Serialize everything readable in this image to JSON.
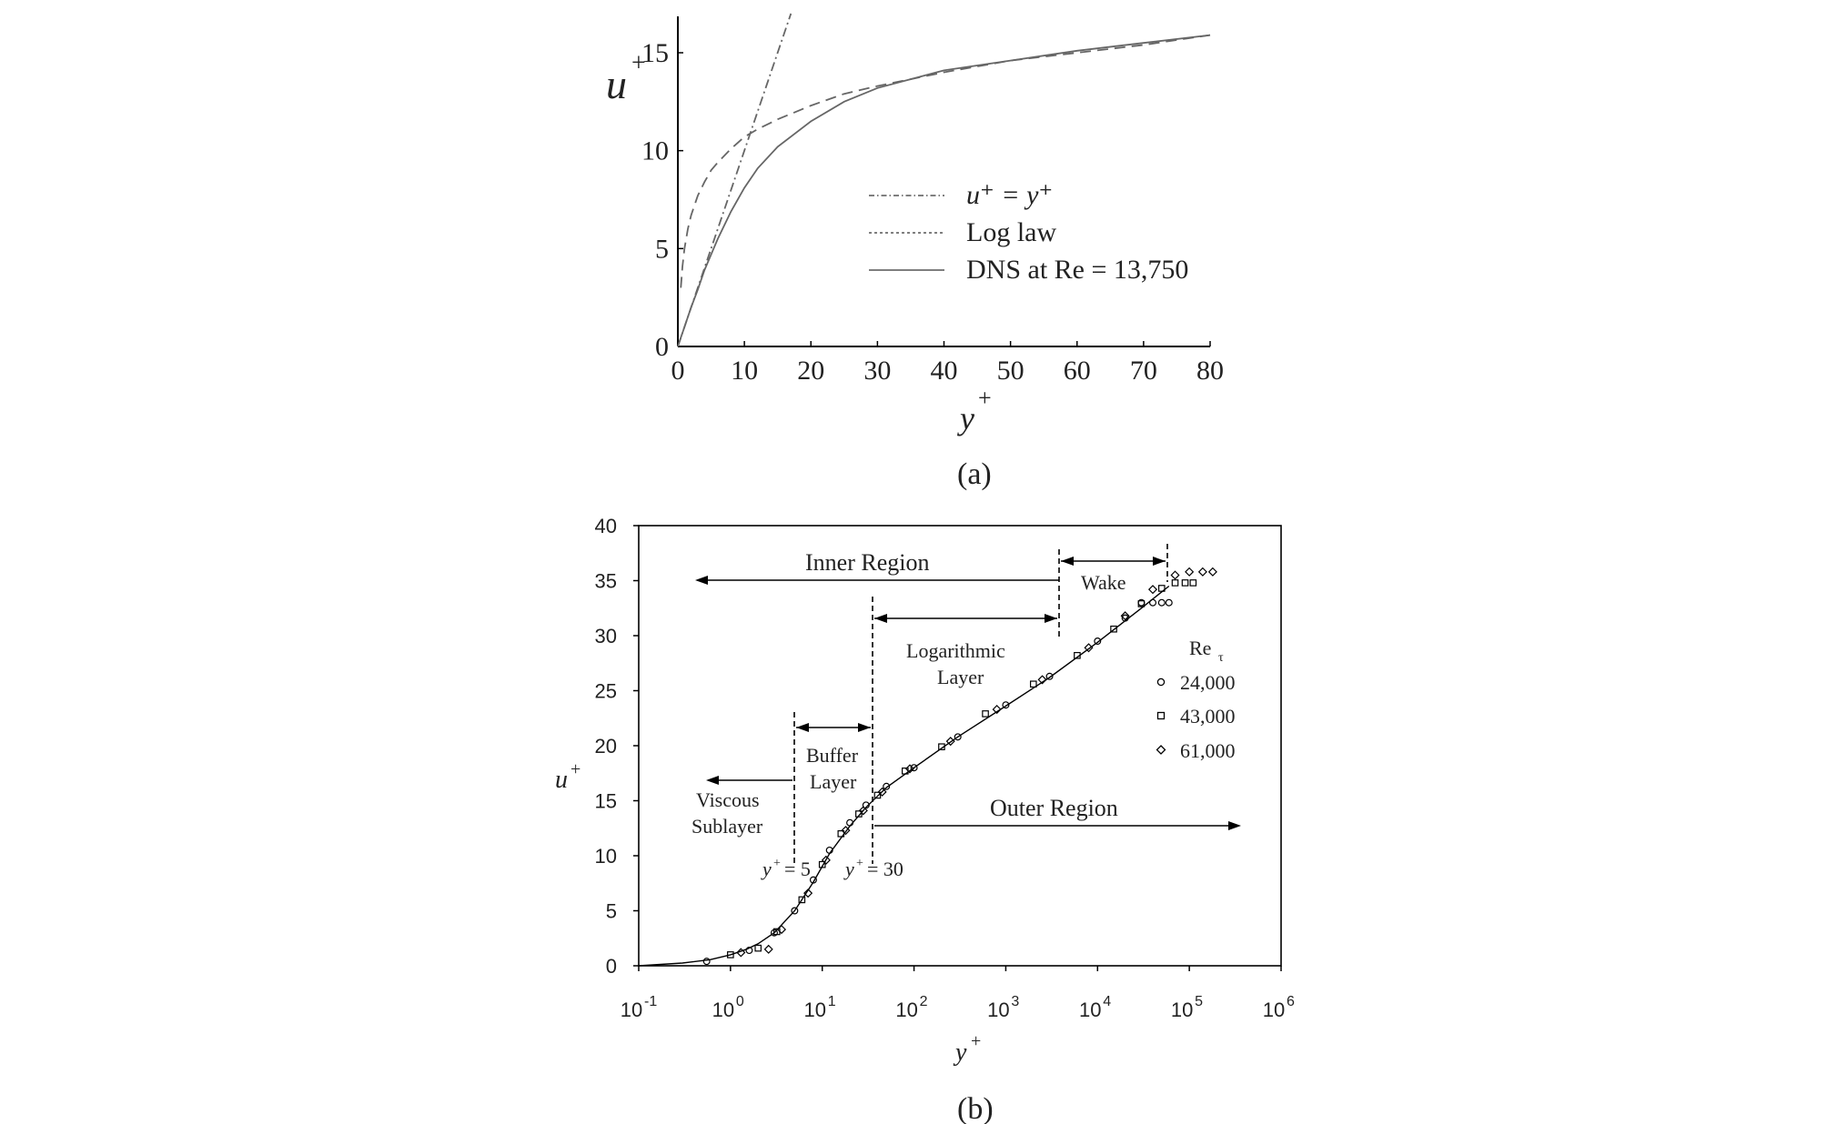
{
  "figure": {
    "caption_a": "(a)",
    "caption_b": "(b)"
  },
  "chart_data": [
    {
      "id": "a",
      "type": "line",
      "xlabel": "y",
      "xlabel_sup": "+",
      "ylabel": "u",
      "ylabel_sup": "+",
      "xlim": [
        0,
        80
      ],
      "ylim": [
        0,
        17
      ],
      "xticks": [
        0,
        10,
        20,
        30,
        40,
        50,
        60,
        70,
        80
      ],
      "xtick_labels": [
        "0",
        "10",
        "20",
        "30",
        "40",
        "50",
        "60",
        "70",
        "80"
      ],
      "yticks": [
        0,
        5,
        10,
        15
      ],
      "ytick_labels": [
        "0",
        "5",
        "10",
        "15"
      ],
      "grid": false,
      "legend_position": "center-right",
      "series": [
        {
          "name": "u⁺ = y⁺",
          "style": "dash-dot",
          "x": [
            0,
            17
          ],
          "y": [
            0,
            17
          ]
        },
        {
          "name": "Log law",
          "style": "dashed",
          "x": [
            0.45,
            0.7,
            1,
            1.5,
            2,
            3,
            4,
            5,
            6,
            8,
            10,
            12,
            15,
            20,
            25,
            30,
            40,
            50,
            60,
            70,
            80
          ],
          "y": [
            3.0,
            4.1,
            5.0,
            6.0,
            6.7,
            7.7,
            8.4,
            9.0,
            9.4,
            10.1,
            10.7,
            11.1,
            11.6,
            12.3,
            12.9,
            13.3,
            14.0,
            14.6,
            15.0,
            15.4,
            15.9
          ]
        },
        {
          "name": "DNS at Re = 13,750",
          "style": "solid",
          "x": [
            0,
            1,
            2,
            3,
            4,
            5,
            6,
            8,
            10,
            12,
            15,
            20,
            25,
            30,
            40,
            50,
            60,
            70,
            80
          ],
          "y": [
            0,
            1.0,
            2.0,
            2.9,
            3.9,
            4.7,
            5.5,
            6.9,
            8.1,
            9.1,
            10.2,
            11.5,
            12.5,
            13.2,
            14.1,
            14.6,
            15.1,
            15.5,
            15.9
          ]
        }
      ]
    },
    {
      "id": "b",
      "type": "scatter",
      "xlabel": "y",
      "xlabel_sup": "+",
      "ylabel": "u",
      "ylabel_sup": "+",
      "xscale": "log",
      "xlim": [
        0.1,
        1000000
      ],
      "ylim": [
        0,
        40
      ],
      "xtick_labels": [
        {
          "base": "10",
          "exp": "-1"
        },
        {
          "base": "10",
          "exp": "0"
        },
        {
          "base": "10",
          "exp": "1"
        },
        {
          "base": "10",
          "exp": "2"
        },
        {
          "base": "10",
          "exp": "3"
        },
        {
          "base": "10",
          "exp": "4"
        },
        {
          "base": "10",
          "exp": "5"
        },
        {
          "base": "10",
          "exp": "6"
        }
      ],
      "yticks": [
        0,
        5,
        10,
        15,
        20,
        25,
        30,
        35,
        40
      ],
      "ytick_labels": [
        "0",
        "5",
        "10",
        "15",
        "20",
        "25",
        "30",
        "35",
        "40"
      ],
      "grid": false,
      "legend_title": "Re",
      "legend_title_sub": "τ",
      "legend_position": "right",
      "series": [
        {
          "name": "24,000",
          "marker": "circle",
          "x": [
            0.55,
            1.6,
            3,
            5,
            8,
            12,
            20,
            30,
            50,
            100,
            300,
            1000,
            3000,
            10000,
            20000,
            30000,
            40000,
            50000,
            60000
          ],
          "y": [
            0.4,
            1.4,
            3.0,
            5.0,
            7.8,
            10.5,
            13.0,
            14.6,
            16.3,
            18.0,
            20.8,
            23.7,
            26.3,
            29.5,
            31.6,
            33.0,
            33.0,
            33.0,
            33.0
          ]
        },
        {
          "name": "43,000",
          "marker": "square",
          "x": [
            1.0,
            2.0,
            3.2,
            6,
            10,
            16,
            25,
            40,
            80,
            200,
            600,
            2000,
            6000,
            15000,
            30000,
            50000,
            70000,
            90000,
            110000
          ],
          "y": [
            1.0,
            1.6,
            3.1,
            6.0,
            9.2,
            12.0,
            13.8,
            15.5,
            17.7,
            19.9,
            22.9,
            25.6,
            28.2,
            30.6,
            32.9,
            34.3,
            34.8,
            34.8,
            34.8
          ]
        },
        {
          "name": "61,000",
          "marker": "diamond",
          "x": [
            1.3,
            2.6,
            3.6,
            7,
            11,
            18,
            28,
            45,
            90,
            250,
            800,
            2500,
            8000,
            20000,
            40000,
            70000,
            100000,
            140000,
            180000
          ],
          "y": [
            1.2,
            1.5,
            3.3,
            6.6,
            9.6,
            12.3,
            14.1,
            15.8,
            17.9,
            20.4,
            23.3,
            26.0,
            28.9,
            31.8,
            34.2,
            35.5,
            35.8,
            35.8,
            35.8
          ]
        }
      ],
      "fit_line": {
        "x": [
          0.1,
          0.3,
          0.6,
          1,
          1.5,
          2,
          3,
          5,
          8,
          12,
          20,
          30,
          50,
          100,
          300,
          1000,
          3000,
          10000,
          30000,
          60000
        ],
        "y": [
          0,
          0.25,
          0.55,
          1.0,
          1.5,
          2.0,
          3.0,
          5.0,
          7.6,
          10.2,
          12.7,
          14.4,
          16.2,
          18.0,
          20.8,
          23.6,
          26.2,
          29.4,
          32.5,
          34.5
        ]
      },
      "annotations": {
        "inner_region": "Inner Region",
        "wake": "Wake",
        "logarithmic": "Logarithmic",
        "layer": "Layer",
        "buffer": "Buffer",
        "buffer_layer": "Layer",
        "viscous": "Viscous",
        "sublayer": "Sublayer",
        "outer_region": "Outer Region",
        "y5": "= 5",
        "y30": "= 30"
      }
    }
  ]
}
